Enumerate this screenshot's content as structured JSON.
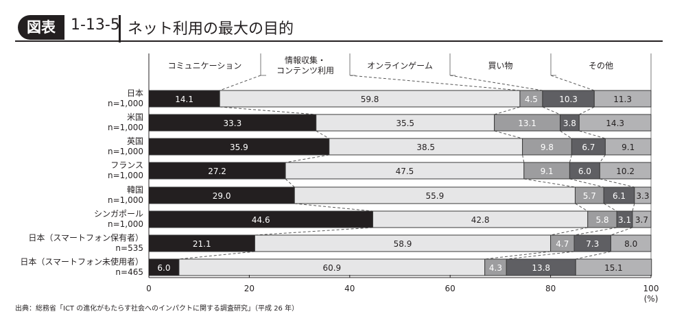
{
  "header": {
    "badge": "図表",
    "number": "1-13-5",
    "title": "ネット利用の最大の目的"
  },
  "source": "出典：総務省「ICT の進化がもたらす社会へのインパクトに関する調査研究」（平成 26 年）",
  "chart_data": {
    "type": "bar",
    "stacked": true,
    "orientation": "horizontal",
    "title": "ネット利用の最大の目的",
    "xlabel": "(%)",
    "xlim": [
      0,
      100
    ],
    "xticks": [
      "0",
      "20",
      "40",
      "60",
      "80",
      "100"
    ],
    "categories": [
      {
        "name": "日本",
        "n": "n=1,000"
      },
      {
        "name": "米国",
        "n": "n=1,000"
      },
      {
        "name": "英国",
        "n": "n=1,000"
      },
      {
        "name": "フランス",
        "n": "n=1,000"
      },
      {
        "name": "韓国",
        "n": "n=1,000"
      },
      {
        "name": "シンガポール",
        "n": "n=1,000"
      },
      {
        "name": "日本（スマートフォン保有者）",
        "n": "n=535"
      },
      {
        "name": "日本（スマートフォン未使用者）",
        "n": "n=465"
      }
    ],
    "series": [
      {
        "name": "コミュニケーション",
        "color": "#231f20",
        "text_color": "#ffffff",
        "values": [
          14.1,
          33.3,
          35.9,
          27.2,
          29.0,
          44.6,
          21.1,
          6.0
        ]
      },
      {
        "name": "情報収集・\nコンテンツ利用",
        "color": "#e6e6e7",
        "text_color": "#231f20",
        "values": [
          59.8,
          35.5,
          38.5,
          47.5,
          55.9,
          42.8,
          58.9,
          60.9
        ]
      },
      {
        "name": "オンラインゲーム",
        "color": "#9d9d9f",
        "text_color": "#ffffff",
        "values": [
          4.5,
          13.1,
          9.8,
          9.1,
          5.7,
          5.8,
          4.7,
          4.3
        ]
      },
      {
        "name": "買い物",
        "color": "#5f5f63",
        "text_color": "#ffffff",
        "values": [
          10.3,
          3.8,
          6.7,
          6.0,
          6.1,
          3.1,
          7.3,
          13.8
        ]
      },
      {
        "name": "その他",
        "color": "#b3b3b5",
        "text_color": "#231f20",
        "values": [
          11.3,
          14.3,
          9.1,
          10.2,
          3.3,
          3.7,
          8.0,
          15.1
        ]
      }
    ],
    "legend": "top"
  }
}
